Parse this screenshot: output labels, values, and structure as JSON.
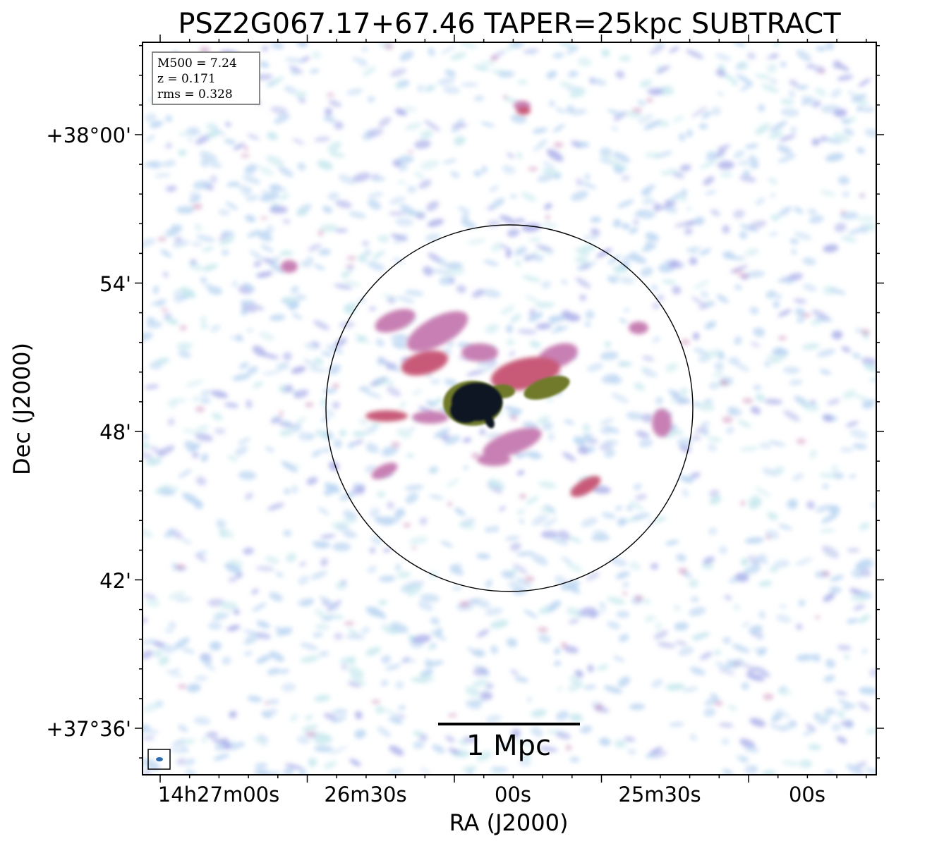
{
  "title": "PSZ2G067.17+67.46 TAPER=25kpc SUBTRACT",
  "xlabel": "RA (J2000)",
  "ylabel": "Dec (J2000)",
  "ra_ticks": [
    "14h27m00s",
    "26m30s",
    "00s",
    "25m30s",
    "00s"
  ],
  "dec_ticks": [
    "+38°00'",
    "54'",
    "48'",
    "42'",
    "+37°36'"
  ],
  "info_box": {
    "m500": "M500 = 7.24",
    "z": "z = 0.171",
    "rms": "rms = 0.328"
  },
  "scalebar": {
    "label": "1 Mpc"
  },
  "colors": {
    "noise_light": "#bcd6f2",
    "noise_cyan": "#c6e8ee",
    "noise_violet": "#aeb2ea",
    "emission_magenta": "#c880b4",
    "emission_rose": "#c85a78",
    "emission_olive": "#6f7a2c",
    "core": "#0d1420",
    "beam": "#2b6cb0"
  }
}
